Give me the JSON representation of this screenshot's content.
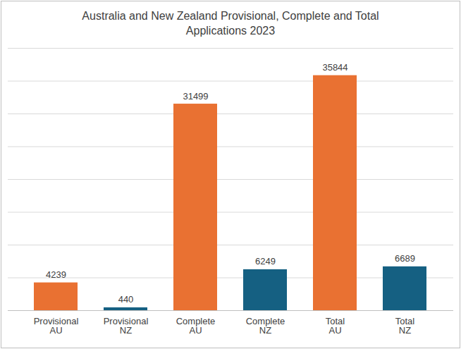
{
  "chart_data": {
    "type": "bar",
    "title": "Australia and New Zealand Provisional, Complete and Total\nApplications 2023",
    "categories": [
      "Provisional\nAU",
      "Provisional\nNZ",
      "Complete\nAU",
      "Complete\nNZ",
      "Total\nAU",
      "Total\nNZ"
    ],
    "values": [
      4239,
      440,
      31499,
      6249,
      35844,
      6689
    ],
    "colors": [
      "#e97132",
      "#156082",
      "#e97132",
      "#156082",
      "#e97132",
      "#156082"
    ],
    "ylim": [
      0,
      40000
    ],
    "yticks": [
      0,
      5000,
      10000,
      15000,
      20000,
      25000,
      30000,
      35000,
      40000
    ],
    "grid": true,
    "data_labels": true,
    "tick_labels": "x"
  }
}
